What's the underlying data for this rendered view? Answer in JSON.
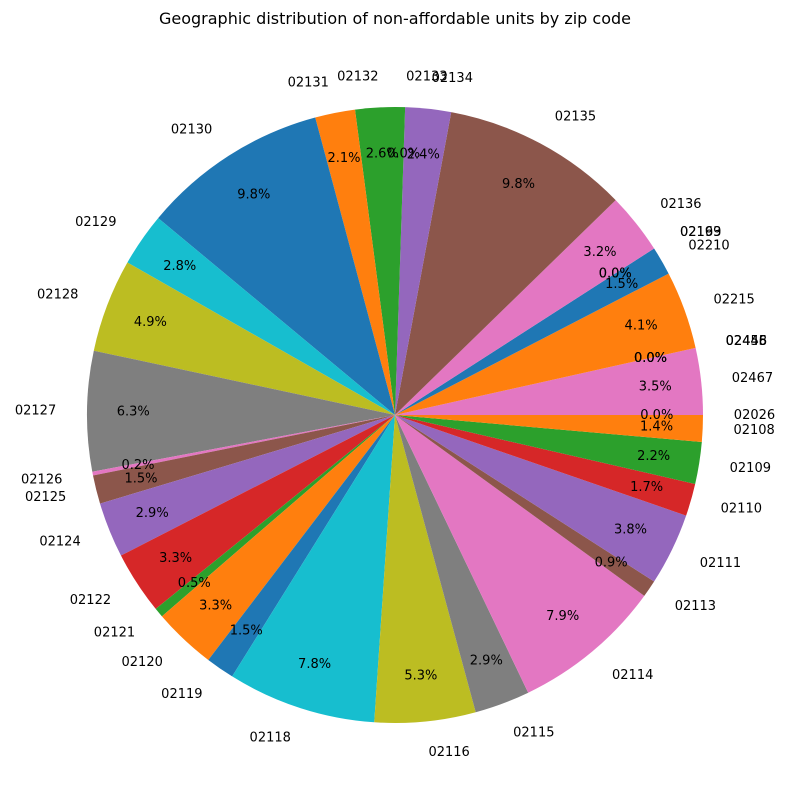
{
  "chart_data": {
    "type": "pie",
    "title": "Geographic distribution of non-affordable units by zip code",
    "slices": [
      {
        "label": "02026",
        "pct": "0.0%",
        "value": 0.0,
        "color": "#ff7f0e"
      },
      {
        "label": "02467",
        "pct": "3.5%",
        "value": 3.5,
        "color": "#e377c2"
      },
      {
        "label": "02458",
        "pct": "0.0%",
        "value": 0.0,
        "color": "#7f7f7f"
      },
      {
        "label": "02446",
        "pct": "0.0%",
        "value": 0.0,
        "color": "#bcbd22"
      },
      {
        "label": "02445",
        "pct": "0.0%",
        "value": 0.0,
        "color": "#17becf"
      },
      {
        "label": "02215",
        "pct": "4.1%",
        "value": 4.1,
        "color": "#ff7f0e"
      },
      {
        "label": "02210",
        "pct": "1.5%",
        "value": 1.5,
        "color": "#1f77b4"
      },
      {
        "label": "02199",
        "pct": "0.0%",
        "value": 0.0,
        "color": "#2ca02c"
      },
      {
        "label": "02163",
        "pct": "0.0%",
        "value": 0.0,
        "color": "#d62728"
      },
      {
        "label": "02136",
        "pct": "3.2%",
        "value": 3.2,
        "color": "#e377c2"
      },
      {
        "label": "02135",
        "pct": "9.8%",
        "value": 9.8,
        "color": "#8c564b"
      },
      {
        "label": "02134",
        "pct": "2.4%",
        "value": 2.4,
        "color": "#9467bd"
      },
      {
        "label": "02133",
        "pct": "0.0%",
        "value": 0.0,
        "color": "#d62728"
      },
      {
        "label": "02132",
        "pct": "2.6%",
        "value": 2.6,
        "color": "#2ca02c"
      },
      {
        "label": "02131",
        "pct": "2.1%",
        "value": 2.1,
        "color": "#ff7f0e"
      },
      {
        "label": "02130",
        "pct": "9.8%",
        "value": 9.8,
        "color": "#1f77b4"
      },
      {
        "label": "02129",
        "pct": "2.8%",
        "value": 2.8,
        "color": "#17becf"
      },
      {
        "label": "02128",
        "pct": "4.9%",
        "value": 4.9,
        "color": "#bcbd22"
      },
      {
        "label": "02127",
        "pct": "6.3%",
        "value": 6.3,
        "color": "#7f7f7f"
      },
      {
        "label": "02126",
        "pct": "0.2%",
        "value": 0.2,
        "color": "#e377c2"
      },
      {
        "label": "02125",
        "pct": "1.5%",
        "value": 1.5,
        "color": "#8c564b"
      },
      {
        "label": "02124",
        "pct": "2.9%",
        "value": 2.9,
        "color": "#9467bd"
      },
      {
        "label": "02122",
        "pct": "3.3%",
        "value": 3.3,
        "color": "#d62728"
      },
      {
        "label": "02121",
        "pct": "0.5%",
        "value": 0.5,
        "color": "#2ca02c"
      },
      {
        "label": "02120",
        "pct": "3.3%",
        "value": 3.3,
        "color": "#ff7f0e"
      },
      {
        "label": "02119",
        "pct": "1.5%",
        "value": 1.5,
        "color": "#1f77b4"
      },
      {
        "label": "02118",
        "pct": "7.8%",
        "value": 7.8,
        "color": "#17becf"
      },
      {
        "label": "02116",
        "pct": "5.3%",
        "value": 5.3,
        "color": "#bcbd22"
      },
      {
        "label": "02115",
        "pct": "2.9%",
        "value": 2.9,
        "color": "#7f7f7f"
      },
      {
        "label": "02114",
        "pct": "7.9%",
        "value": 7.9,
        "color": "#e377c2"
      },
      {
        "label": "02113",
        "pct": "0.9%",
        "value": 0.9,
        "color": "#8c564b"
      },
      {
        "label": "02111",
        "pct": "3.8%",
        "value": 3.8,
        "color": "#9467bd"
      },
      {
        "label": "02110",
        "pct": "1.7%",
        "value": 1.7,
        "color": "#d62728"
      },
      {
        "label": "02109",
        "pct": "2.2%",
        "value": 2.2,
        "color": "#2ca02c"
      },
      {
        "label": "02108",
        "pct": "1.4%",
        "value": 1.4,
        "color": "#ff7f0e"
      }
    ]
  }
}
